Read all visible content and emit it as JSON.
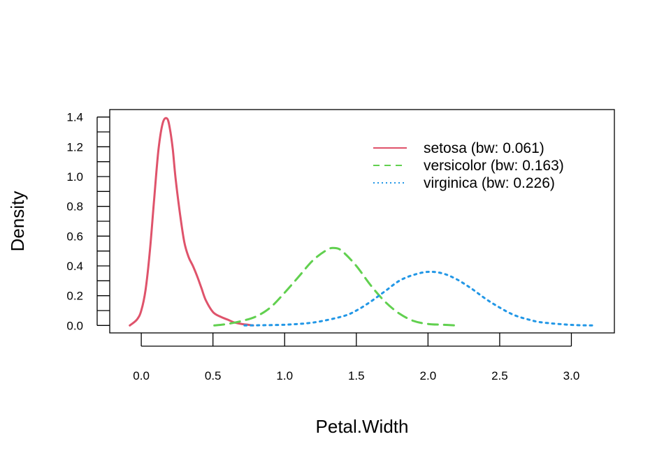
{
  "chart_data": {
    "type": "line",
    "title": "",
    "xlabel": "Petal.Width",
    "ylabel": "Density",
    "xlim": [
      -0.22,
      3.3
    ],
    "ylim": [
      -0.05,
      1.45
    ],
    "xticks": [
      "0.0",
      "0.5",
      "1.0",
      "1.5",
      "2.0",
      "2.5",
      "3.0"
    ],
    "yticks": [
      "0.0",
      "0.2",
      "0.4",
      "0.6",
      "0.8",
      "1.0",
      "1.2",
      "1.4"
    ],
    "grid": false,
    "legend_position": "top-right",
    "series": [
      {
        "name": "setosa (bw: 0.061)",
        "color": "#DF536B",
        "dash": "solid",
        "x": [
          -0.08,
          -0.03,
          0.0,
          0.03,
          0.06,
          0.09,
          0.12,
          0.15,
          0.18,
          0.2,
          0.22,
          0.24,
          0.27,
          0.3,
          0.33,
          0.36,
          0.39,
          0.42,
          0.45,
          0.5,
          0.55,
          0.6,
          0.65,
          0.7,
          0.75,
          0.78
        ],
        "y": [
          0.0,
          0.04,
          0.1,
          0.24,
          0.5,
          0.85,
          1.18,
          1.36,
          1.39,
          1.32,
          1.18,
          0.98,
          0.75,
          0.56,
          0.46,
          0.4,
          0.33,
          0.25,
          0.17,
          0.09,
          0.06,
          0.04,
          0.02,
          0.01,
          0.004,
          0.0
        ]
      },
      {
        "name": "versicolor (bw: 0.163)",
        "color": "#61D04F",
        "dash": "dashed",
        "x": [
          0.51,
          0.6,
          0.7,
          0.8,
          0.9,
          1.0,
          1.1,
          1.2,
          1.3,
          1.35,
          1.4,
          1.5,
          1.6,
          1.7,
          1.8,
          1.9,
          2.0,
          2.1,
          2.2
        ],
        "y": [
          0.0,
          0.01,
          0.03,
          0.06,
          0.12,
          0.22,
          0.33,
          0.44,
          0.51,
          0.52,
          0.5,
          0.4,
          0.27,
          0.16,
          0.08,
          0.03,
          0.01,
          0.005,
          0.0
        ]
      },
      {
        "name": "virginica (bw: 0.226)",
        "color": "#2297E6",
        "dash": "dotted",
        "x": [
          0.72,
          0.8,
          1.0,
          1.2,
          1.4,
          1.5,
          1.6,
          1.7,
          1.8,
          1.9,
          2.0,
          2.1,
          2.2,
          2.3,
          2.4,
          2.5,
          2.6,
          2.7,
          2.8,
          3.0,
          3.15
        ],
        "y": [
          0.0,
          0.001,
          0.005,
          0.02,
          0.06,
          0.1,
          0.16,
          0.23,
          0.3,
          0.34,
          0.36,
          0.35,
          0.31,
          0.25,
          0.18,
          0.12,
          0.07,
          0.04,
          0.02,
          0.004,
          0.0
        ]
      }
    ]
  }
}
